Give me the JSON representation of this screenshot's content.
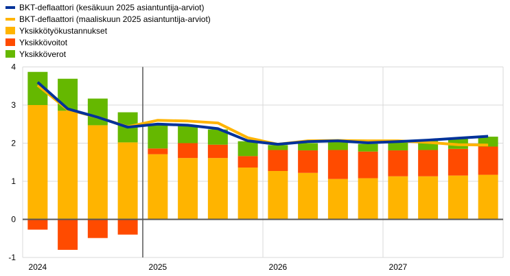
{
  "chart_data": {
    "type": "bar",
    "stacked": true,
    "categories": [
      "2024 Q1",
      "2024 Q2",
      "2024 Q3",
      "2024 Q4",
      "2025 Q1",
      "2025 Q2",
      "2025 Q3",
      "2025 Q4",
      "2026 Q1",
      "2026 Q2",
      "2026 Q3",
      "2026 Q4",
      "2027 Q1",
      "2027 Q2",
      "2027 Q3",
      "2027 Q4"
    ],
    "x_tick_labels": [
      {
        "label": "2024",
        "index": 0
      },
      {
        "label": "2025",
        "index": 4
      },
      {
        "label": "2026",
        "index": 8
      },
      {
        "label": "2027",
        "index": 12
      }
    ],
    "ylim": [
      -1,
      4
    ],
    "y_ticks": [
      "-1",
      "0",
      "1",
      "2",
      "3",
      "4"
    ],
    "grid": true,
    "legend_position": "top-left",
    "projection_start_after_index": 3,
    "series": [
      {
        "name": "BKT-deflaattori (kesäkuun 2025 asiantuntija-arviot)",
        "kind": "line",
        "color": "#003299",
        "values": [
          3.6,
          2.9,
          2.68,
          2.42,
          2.5,
          2.47,
          2.38,
          2.06,
          1.97,
          2.04,
          2.06,
          2.01,
          2.04,
          2.08,
          2.13,
          2.18
        ]
      },
      {
        "name": "BKT-deflaattori (maaliskuun 2025 asiantuntija-arviot)",
        "kind": "line",
        "color": "#FFB400",
        "values": [
          3.52,
          2.88,
          2.68,
          2.43,
          2.6,
          2.58,
          2.53,
          2.14,
          1.97,
          2.06,
          2.07,
          2.06,
          2.06,
          2.02,
          1.96,
          1.95
        ]
      },
      {
        "name": "Yksikkötyökustannukset",
        "kind": "bar",
        "color": "#FFB400",
        "values": [
          3.0,
          2.85,
          2.47,
          2.02,
          1.71,
          1.61,
          1.61,
          1.36,
          1.27,
          1.22,
          1.06,
          1.08,
          1.13,
          1.13,
          1.15,
          1.17
        ]
      },
      {
        "name": "Yksikkövoitot",
        "kind": "bar",
        "color": "#FF4B00",
        "values": [
          -0.27,
          -0.8,
          -0.49,
          -0.4,
          0.15,
          0.39,
          0.35,
          0.3,
          0.55,
          0.59,
          0.76,
          0.7,
          0.68,
          0.69,
          0.7,
          0.74
        ]
      },
      {
        "name": "Yksikköverot",
        "kind": "bar",
        "color": "#65B800",
        "values": [
          0.87,
          0.84,
          0.7,
          0.79,
          0.62,
          0.45,
          0.4,
          0.39,
          0.13,
          0.19,
          0.22,
          0.2,
          0.22,
          0.24,
          0.26,
          0.26
        ]
      }
    ]
  }
}
